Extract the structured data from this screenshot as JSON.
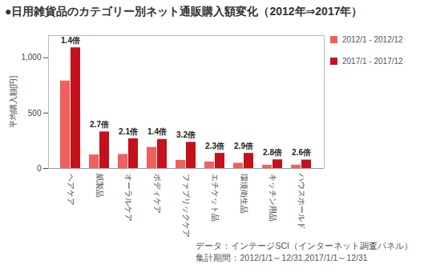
{
  "chart_data": {
    "type": "bar",
    "title": "●日用雑貨品のカテゴリー別ネット通販購入額変化（2012年⇒2017年）",
    "categories": [
      "ヘアケア",
      "紙製品",
      "オーラルケア",
      "ボディケア",
      "ファブリックケア",
      "エチケット品",
      "環境衛生品",
      "キッチン用品",
      "ハウスホールド"
    ],
    "series": [
      {
        "name": "2012/1 - 2012/12",
        "color": "#f0605e",
        "values": [
          790,
          122,
          127,
          190,
          73,
          58,
          47,
          28,
          30
        ]
      },
      {
        "name": "2017/1 - 2017/12",
        "color": "#c4111b",
        "values": [
          1090,
          330,
          268,
          262,
          236,
          136,
          136,
          78,
          76
        ]
      }
    ],
    "annotations": [
      "1.4倍",
      "2.7倍",
      "2.1倍",
      "1.4倍",
      "3.2倍",
      "2.3倍",
      "2.9倍",
      "2.8倍",
      "2.6倍"
    ],
    "ylabel": "平均購入額[円]",
    "ylim": [
      0,
      1200
    ],
    "yticks": [
      0,
      500,
      {
        "value": 1000,
        "label": "1,000"
      }
    ],
    "legend": "right",
    "caption": [
      "データ：インテージSCI（インターネット調査パネル）",
      "集計期間：2012/1/1～12/31,2017/1/1～12/31"
    ]
  }
}
